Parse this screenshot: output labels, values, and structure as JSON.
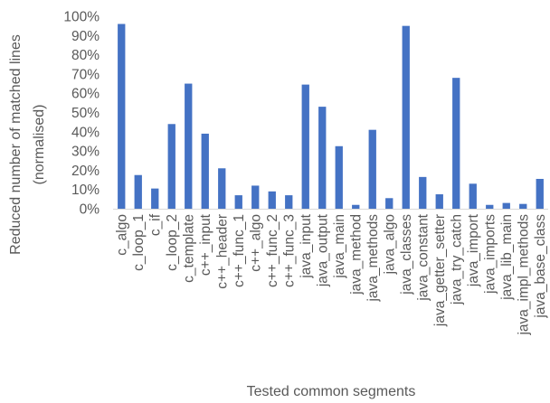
{
  "chart_data": {
    "type": "bar",
    "xlabel": "Tested common segments",
    "ylabel": [
      "Reduced number of matched lines",
      "(normalised)"
    ],
    "ylim": [
      0,
      100
    ],
    "yticks": [
      "0%",
      "10%",
      "20%",
      "30%",
      "40%",
      "50%",
      "60%",
      "70%",
      "80%",
      "90%",
      "100%"
    ],
    "grid": false,
    "legend": "none",
    "bar_color": "#4472C4",
    "categories": [
      "c_algo",
      "c_loop_1",
      "c_if",
      "c_loop_2",
      "c_template",
      "c++_input",
      "c++_header",
      "c++_func_1",
      "c++_algo",
      "c++_func_2",
      "c++_func_3",
      "java_input",
      "java_output",
      "java_main",
      "java_method",
      "java_methods",
      "java_algo",
      "java_classes",
      "java_constant",
      "java_getter_setter",
      "java_try_catch",
      "java_import",
      "java_imports",
      "java_lib_main",
      "java_impl_methods",
      "java_base_class"
    ],
    "values": [
      96,
      17.5,
      10.5,
      44,
      65,
      39,
      21,
      7,
      12,
      9,
      7,
      64.5,
      53,
      32.5,
      2,
      41,
      5.5,
      95,
      16.5,
      7.5,
      68,
      13,
      2,
      3,
      2.5,
      15.5
    ]
  }
}
